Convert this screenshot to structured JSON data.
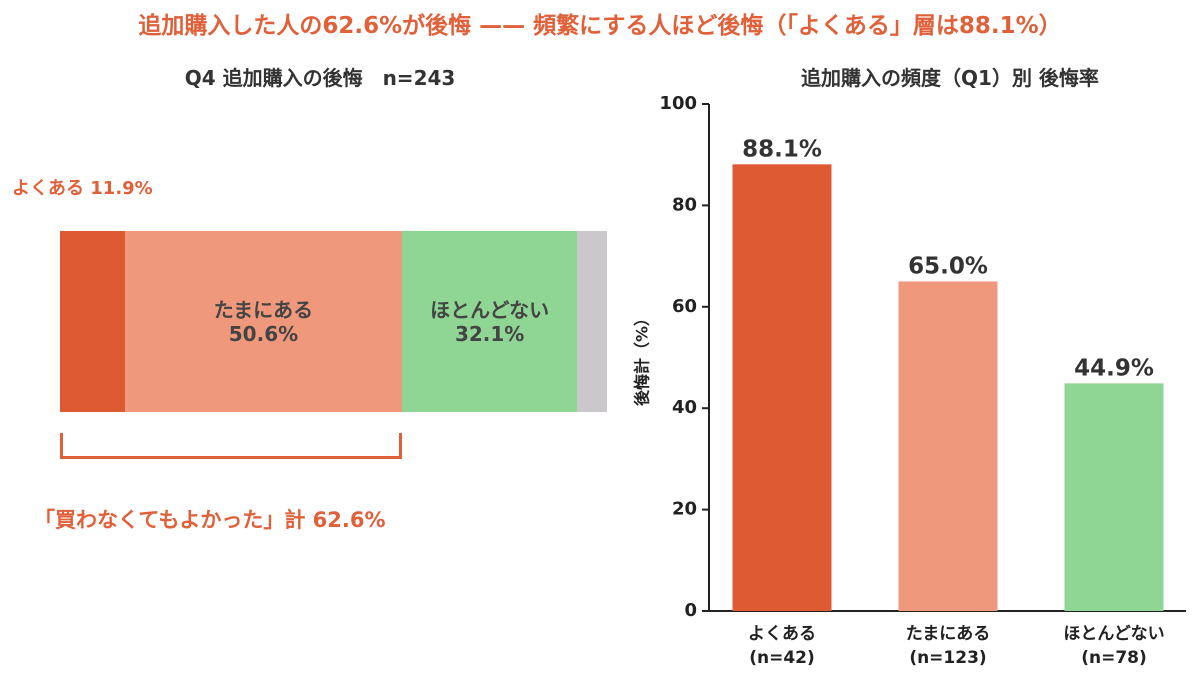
{
  "main_title": "追加購入した人の62.6%が後悔 —— 頻繁にする人ほど後悔（「よくある」層は88.1%）",
  "left_panel": {
    "title": "Q4 追加購入の後悔　n=243",
    "often_callout": "よくある 11.9%",
    "total_callout": "「買わなくてもよかった」計 62.6%",
    "colors": {
      "often": "#dd5a33",
      "sometimes": "#f0987b",
      "rarely": "#8fd694",
      "other": "#cbc8cc",
      "accent": "#e0603a"
    }
  },
  "right_panel": {
    "title": "追加購入の頻度（Q1）別 後悔率"
  },
  "chart_data": [
    {
      "type": "bar",
      "orientation": "horizontal-stacked",
      "title": "Q4 追加購入の後悔　n=243",
      "segments": [
        {
          "name": "よくある",
          "value": 11.9,
          "color": "#dd5a33",
          "label": "",
          "value_label": ""
        },
        {
          "name": "たまにある",
          "value": 50.6,
          "color": "#f0987b",
          "label": "たまにある",
          "value_label": "50.6%"
        },
        {
          "name": "ほとんどない",
          "value": 32.1,
          "color": "#8fd694",
          "label": "ほとんどない",
          "value_label": "32.1%"
        },
        {
          "name": "",
          "value": 5.4,
          "color": "#cbc8cc",
          "label": "",
          "value_label": ""
        }
      ],
      "annotations": [
        "よくある 11.9%",
        "「買わなくてもよかった」計 62.6%"
      ]
    },
    {
      "type": "bar",
      "title": "追加購入の頻度（Q1）別 後悔率",
      "categories": [
        "よくある",
        "たまにある",
        "ほとんどない"
      ],
      "category_sublabels": [
        "(n=42)",
        "(n=123)",
        "(n=78)"
      ],
      "values": [
        88.1,
        65.0,
        44.9
      ],
      "value_labels": [
        "88.1%",
        "65.0%",
        "44.9%"
      ],
      "colors": [
        "#dd5a33",
        "#f0987b",
        "#8fd694"
      ],
      "ylabel": "後悔計（%）",
      "xlabel": "",
      "ylim": [
        0,
        100
      ],
      "yticks": [
        "0",
        "20",
        "40",
        "60",
        "80",
        "100"
      ],
      "grid": false
    }
  ]
}
